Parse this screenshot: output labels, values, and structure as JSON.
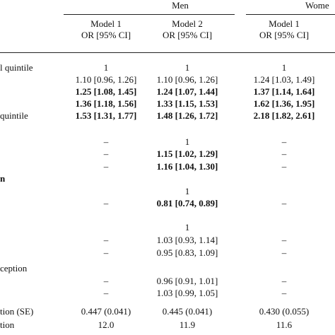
{
  "table": {
    "groups": [
      "Men",
      "Wome"
    ],
    "columns": [
      {
        "model": "Model 1",
        "stat": "OR [95% CI]"
      },
      {
        "model": "Model 2",
        "stat": "OR [95% CI]"
      },
      {
        "model": "Model 1",
        "stat": "OR [95% CI]"
      }
    ],
    "rows": [
      {
        "label": "l quintile",
        "cells": [
          "1",
          "1",
          "1"
        ]
      },
      {
        "cells": [
          "1.10 [0.96, 1.26]",
          "1.10 [0.96, 1.26]",
          "1.24 [1.03, 1.49]"
        ]
      },
      {
        "cells": [
          "1.25 [1.08, 1.45]",
          "1.24 [1.07, 1.44]",
          "1.37 [1.14, 1.64]"
        ],
        "bold": [
          true,
          true,
          true
        ]
      },
      {
        "cells": [
          "1.36 [1.18, 1.56]",
          "1.33 [1.15, 1.53]",
          "1.62 [1.36, 1.95]"
        ],
        "bold": [
          true,
          true,
          true
        ]
      },
      {
        "label": "quintile",
        "cells": [
          "1.53 [1.31, 1.77]",
          "1.48 [1.26, 1.72]",
          "2.18 [1.82, 2.61]"
        ],
        "bold": [
          true,
          true,
          true
        ]
      },
      {
        "cells": [
          "–",
          "1",
          "–"
        ]
      },
      {
        "cells": [
          "–",
          "1.15 [1.02, 1.29]",
          "–"
        ],
        "bold": [
          false,
          true,
          false
        ]
      },
      {
        "cells": [
          "–",
          "1.16 [1.04, 1.30]",
          "–"
        ],
        "bold": [
          false,
          true,
          false
        ]
      },
      {
        "label": "n",
        "label_bold": true,
        "cells": []
      },
      {
        "cells": [
          null,
          "1",
          null
        ]
      },
      {
        "cells": [
          "–",
          "0.81 [0.74, 0.89]",
          "–"
        ],
        "bold": [
          false,
          true,
          false
        ]
      },
      {
        "cells": [
          null,
          "1",
          null
        ]
      },
      {
        "cells": [
          "–",
          "1.03 [0.93, 1.14]",
          "–"
        ]
      },
      {
        "cells": [
          "–",
          "0.95 [0.83, 1.09]",
          "–"
        ]
      },
      {
        "label": "ception",
        "cells": []
      },
      {
        "cells": [
          "–",
          "0.96 [0.91, 1.01]",
          "–"
        ]
      },
      {
        "cells": [
          "–",
          "1.03 [0.99, 1.05]",
          "–"
        ]
      },
      {
        "label": "tion (SE)",
        "cells": [
          "0.447 (0.041)",
          "0.445 (0.041)",
          "0.430 (0.055)"
        ]
      },
      {
        "label": "tion",
        "cells": [
          "12.0",
          "11.9",
          "11.6"
        ]
      }
    ]
  }
}
